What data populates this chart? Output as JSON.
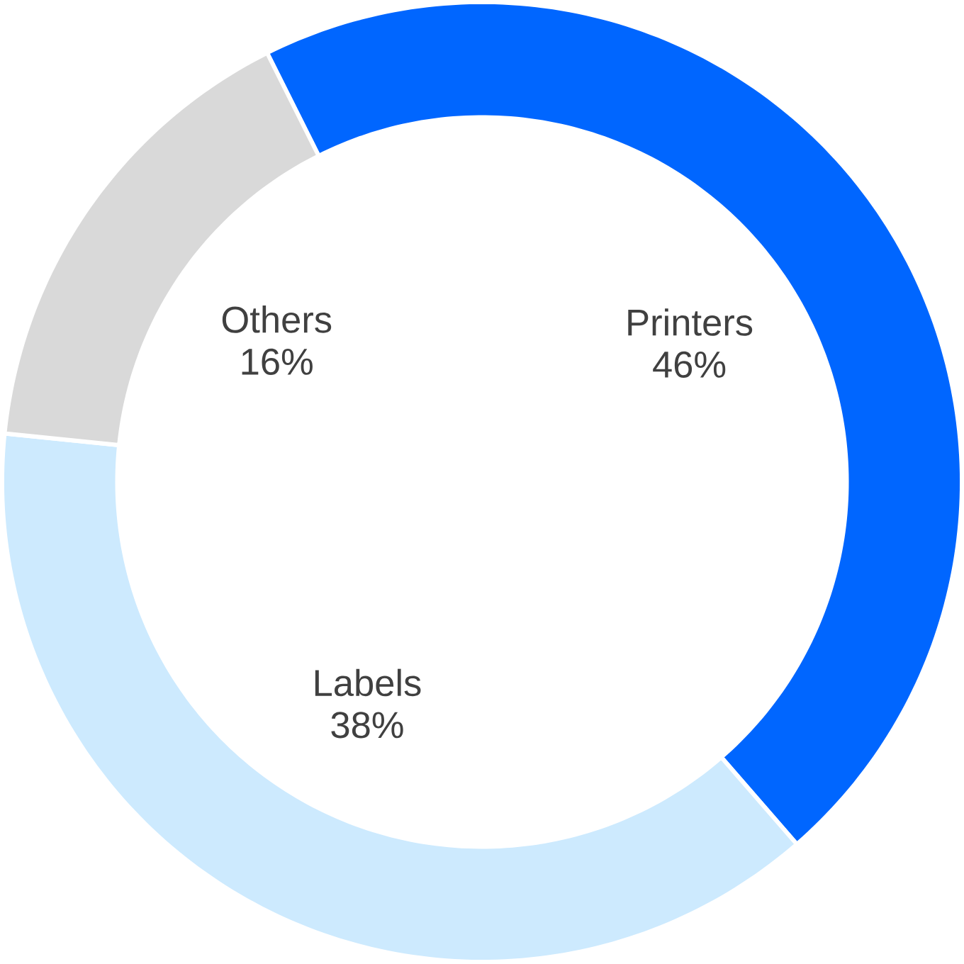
{
  "chart_data": {
    "type": "donut",
    "categories": [
      "Printers",
      "Labels",
      "Others"
    ],
    "values": [
      46,
      38,
      16
    ],
    "colors": [
      "#0066ff",
      "#cdeafe",
      "#d9d9d9"
    ],
    "value_labels": [
      "46%",
      "38%",
      "16%"
    ]
  }
}
